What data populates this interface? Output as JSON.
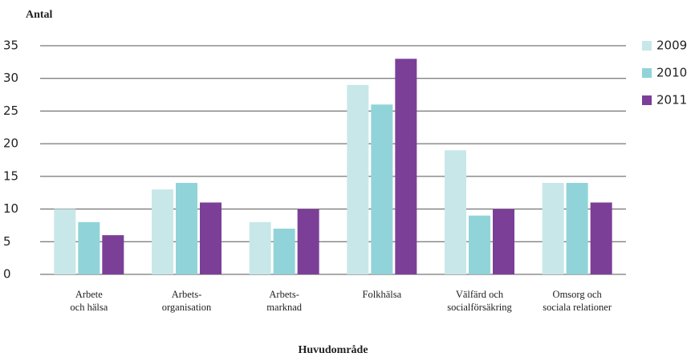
{
  "chart_data": {
    "type": "bar",
    "y_label": "Antal",
    "x_label": "Huvudområde",
    "categories": [
      "Arbete\noch hälsa",
      "Arbets-\norganisation",
      "Arbets-\nmarknad",
      "Folkhälsa",
      "Välfärd och\nsocialförsäkring",
      "Omsorg och\nsociala relationer"
    ],
    "series": [
      {
        "name": "2009",
        "color": "#c8e7e9",
        "values": [
          10,
          13,
          8,
          29,
          19,
          14
        ]
      },
      {
        "name": "2010",
        "color": "#90d4d9",
        "values": [
          8,
          14,
          7,
          26,
          9,
          14
        ]
      },
      {
        "name": "2011",
        "color": "#7c3f98",
        "values": [
          6,
          11,
          10,
          33,
          10,
          11
        ]
      }
    ],
    "ylim": [
      0,
      35
    ],
    "yticks": [
      0,
      5,
      10,
      15,
      20,
      25,
      30,
      35
    ],
    "grid": true,
    "legend": "right"
  }
}
